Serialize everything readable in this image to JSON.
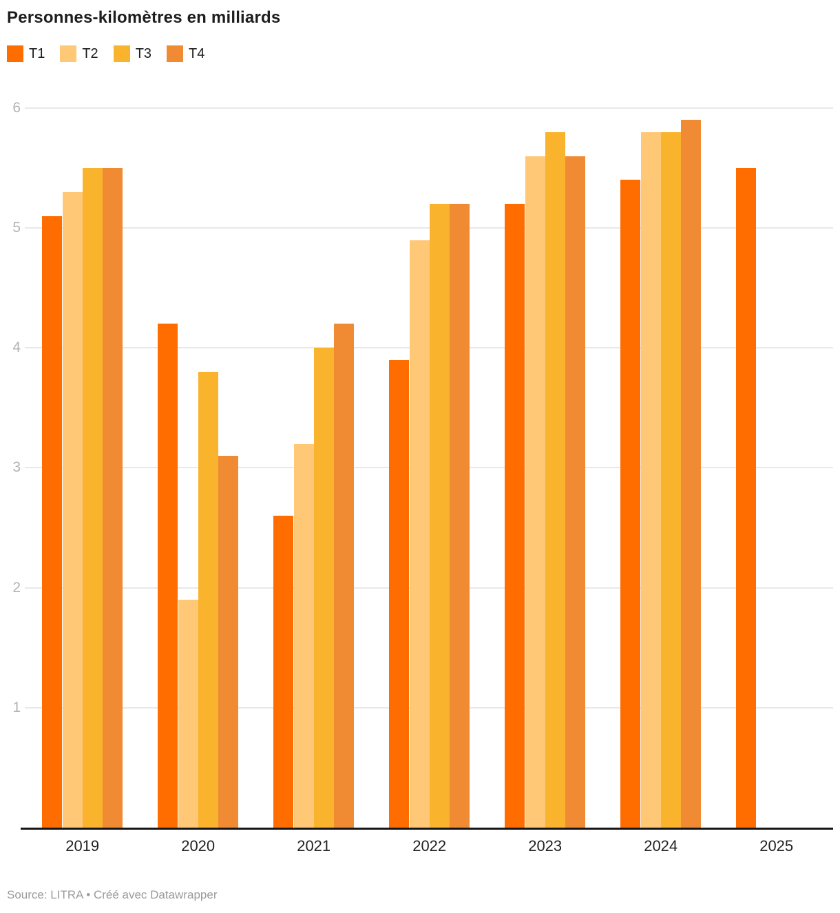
{
  "header": {
    "title": "Personnes-kilomètres en milliards"
  },
  "legend": {
    "items": [
      {
        "label": "T1",
        "color": "#FF6D00"
      },
      {
        "label": "T2",
        "color": "#FEC877"
      },
      {
        "label": "T3",
        "color": "#FAB32D"
      },
      {
        "label": "T4",
        "color": "#F08B33"
      }
    ]
  },
  "chart_data": {
    "type": "bar",
    "title": "Personnes-kilomètres en milliards",
    "categories": [
      "2019",
      "2020",
      "2021",
      "2022",
      "2023",
      "2024",
      "2025"
    ],
    "series": [
      {
        "name": "T1",
        "color": "#FF6D00",
        "values": [
          5.1,
          4.2,
          2.6,
          3.9,
          5.2,
          5.4,
          5.5
        ]
      },
      {
        "name": "T2",
        "color": "#FEC877",
        "values": [
          5.3,
          1.9,
          3.2,
          4.9,
          5.6,
          5.8,
          null
        ]
      },
      {
        "name": "T3",
        "color": "#FAB32D",
        "values": [
          5.5,
          3.8,
          4.0,
          5.2,
          5.8,
          5.8,
          null
        ]
      },
      {
        "name": "T4",
        "color": "#F08B33",
        "values": [
          5.5,
          3.1,
          4.2,
          5.2,
          5.6,
          5.9,
          null
        ]
      }
    ],
    "ylim": [
      0,
      6
    ],
    "yticks": [
      1,
      2,
      3,
      4,
      5,
      6
    ],
    "grid": "horizontal",
    "legend_position": "top",
    "xlabel": "",
    "ylabel": ""
  },
  "colors": {
    "axis": "#151515",
    "gridline": "#e8e8e8",
    "y_tick_label": "#b3b3b3",
    "x_tick_label": "#222222",
    "footer_text": "#9b9b9b"
  },
  "footer": {
    "text": "Source: LITRA • Créé avec Datawrapper"
  }
}
